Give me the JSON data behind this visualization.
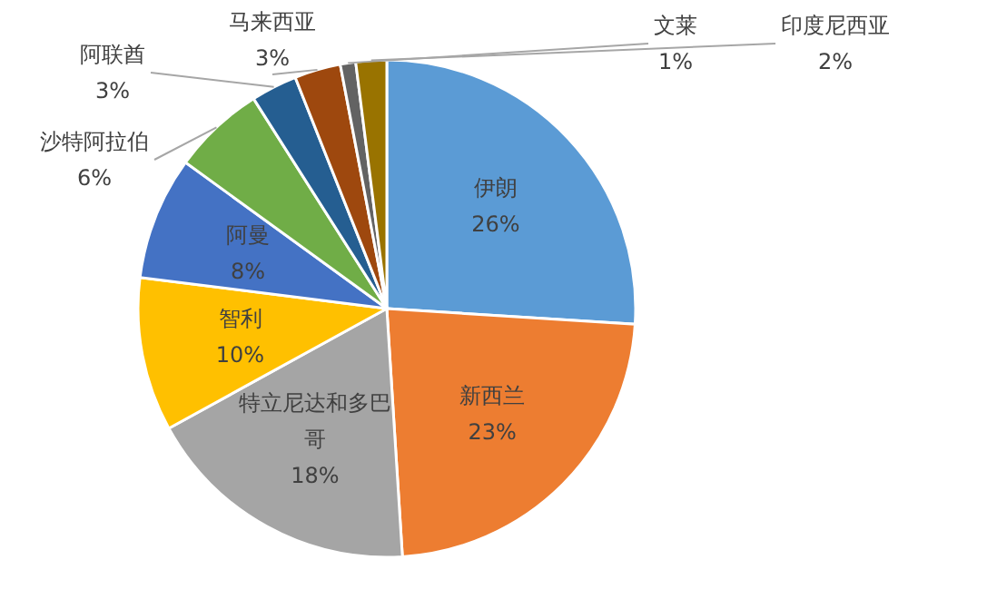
{
  "chart_data": {
    "type": "pie",
    "categories": [
      "伊朗",
      "新西兰",
      "特立尼达和多巴哥",
      "智利",
      "阿曼",
      "沙特阿拉伯",
      "阿联酋",
      "马来西亚",
      "文莱",
      "印度尼西亚"
    ],
    "values": [
      26,
      23,
      18,
      10,
      8,
      6,
      3,
      3,
      1,
      2
    ],
    "colors": [
      "#5b9bd5",
      "#ed7d31",
      "#a5a5a5",
      "#ffc000",
      "#4472c4",
      "#70ad47",
      "#255e91",
      "#9e480e",
      "#636363",
      "#997300"
    ],
    "value_labels": [
      "26%",
      "23%",
      "18%",
      "10%",
      "8%",
      "6%",
      "3%",
      "3%",
      "1%",
      "2%"
    ]
  }
}
